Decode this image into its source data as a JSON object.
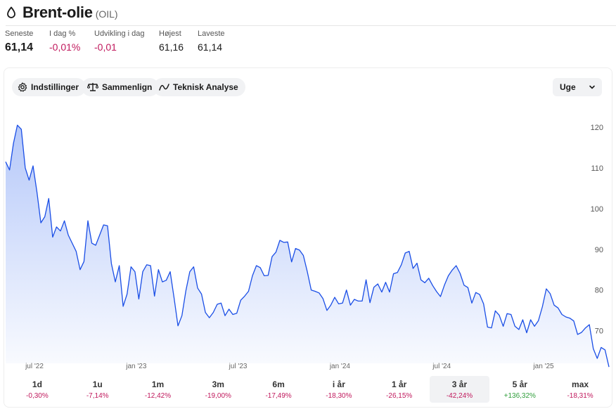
{
  "header": {
    "title": "Brent-olie",
    "ticker": "(OIL)",
    "icon": "drop-icon"
  },
  "stats": [
    {
      "label": "Seneste",
      "value": "61,14",
      "style": "big"
    },
    {
      "label": "I dag %",
      "value": "-0,01%",
      "style": "neg"
    },
    {
      "label": "Udvikling i dag",
      "value": "-0,01",
      "style": "neg"
    },
    {
      "label": "Højest",
      "value": "61,16",
      "style": "plain"
    },
    {
      "label": "Laveste",
      "value": "61,14",
      "style": "plain"
    }
  ],
  "toolbar": {
    "settings_label": "Indstillinger",
    "compare_label": "Sammenlign",
    "technical_label": "Teknisk Analyse",
    "interval_value": "Uge"
  },
  "chart_data": {
    "type": "area",
    "x_ticks": [
      "jul '22",
      "jan '23",
      "jul '23",
      "jan '24",
      "jul '24",
      "jan '25"
    ],
    "y_ticks": [
      70,
      80,
      90,
      100,
      110,
      120
    ],
    "ylim": [
      62,
      125
    ],
    "line_color": "#1a4ee6",
    "series": [
      {
        "values": [
          111.5,
          109.5,
          116,
          120.5,
          119.5,
          110,
          107,
          110.5,
          104,
          96.5,
          98,
          102.5,
          93,
          95.5,
          94.5,
          97,
          93.5,
          91.5,
          89.5,
          85,
          87,
          97,
          91.5,
          91,
          93.5,
          96,
          95.8,
          86.5,
          82,
          86,
          76,
          79,
          85.7,
          84.5,
          77.8,
          84.5,
          86.2,
          86,
          78.5,
          85,
          82,
          82.4,
          84.5,
          78,
          71.2,
          73.7,
          79.8,
          84.5,
          85.7,
          80.5,
          79,
          74.5,
          73.2,
          74.5,
          76.5,
          76.8,
          73.7,
          75.3,
          74,
          74.3,
          77.5,
          78.5,
          79.7,
          83.5,
          86,
          85.5,
          83.5,
          83.6,
          88.2,
          89.3,
          92.2,
          91.7,
          91.8,
          86.9,
          90.2,
          89.8,
          88.5,
          84.5,
          80,
          79.7,
          79.3,
          77.9,
          75,
          76.3,
          78.2,
          76.6,
          76.8,
          80,
          76.3,
          77.7,
          77.3,
          77.3,
          82.5,
          76.9,
          80.7,
          81.5,
          79.5,
          81.9,
          79.5,
          84,
          84.3,
          86.2,
          89.1,
          89.5,
          85.3,
          86.6,
          82.5,
          81.8,
          82.9,
          81.1,
          79.6,
          78.4,
          81.2,
          83.5,
          84.9,
          86,
          84.1,
          81.2,
          80.6,
          76.8,
          79.4,
          78.9,
          76.6,
          70.9,
          70.7,
          74.9,
          73.8,
          71.1,
          74.2,
          74,
          71.1,
          70.3,
          72.7,
          69.5,
          72.7,
          71.1,
          72.5,
          75.9,
          80.3,
          79.1,
          76.3,
          75.6,
          74,
          73.4,
          73.1,
          72.4,
          69.1,
          69.6,
          70.7,
          71.5,
          65.6,
          63.2,
          65.9,
          65.3,
          61.1
        ]
      }
    ]
  },
  "ranges": [
    {
      "label": "1d",
      "change": "-0,30%",
      "sign": "neg"
    },
    {
      "label": "1u",
      "change": "-7,14%",
      "sign": "neg"
    },
    {
      "label": "1m",
      "change": "-12,42%",
      "sign": "neg"
    },
    {
      "label": "3m",
      "change": "-19,00%",
      "sign": "neg"
    },
    {
      "label": "6m",
      "change": "-17,49%",
      "sign": "neg"
    },
    {
      "label": "i år",
      "change": "-18,30%",
      "sign": "neg"
    },
    {
      "label": "1 år",
      "change": "-26,15%",
      "sign": "neg"
    },
    {
      "label": "3 år",
      "change": "-42,24%",
      "sign": "neg",
      "active": true
    },
    {
      "label": "5 år",
      "change": "+136,32%",
      "sign": "pos"
    },
    {
      "label": "max",
      "change": "-18,31%",
      "sign": "neg"
    }
  ]
}
